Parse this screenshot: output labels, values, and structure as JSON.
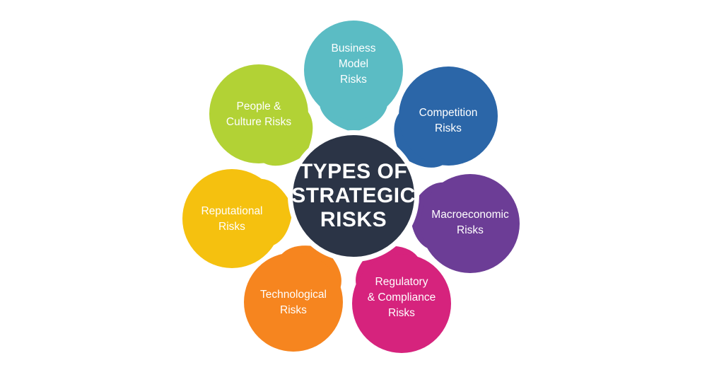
{
  "center": {
    "lines": [
      "TYPES OF",
      "STRATEGIC",
      "RISKS"
    ],
    "fill": "#2b3446"
  },
  "categories": [
    {
      "id": "business-model",
      "lines": [
        "Business",
        "Model",
        "Risks"
      ],
      "color": "#5bbcc4"
    },
    {
      "id": "competition",
      "lines": [
        "Competition",
        "Risks"
      ],
      "color": "#2b66a8"
    },
    {
      "id": "macroeconomic",
      "lines": [
        "Macroeconomic",
        "Risks"
      ],
      "color": "#6c3d96"
    },
    {
      "id": "regulatory",
      "lines": [
        "Regulatory",
        "& Compliance",
        "Risks"
      ],
      "color": "#d6237d"
    },
    {
      "id": "technological",
      "lines": [
        "Technological",
        "Risks"
      ],
      "color": "#f6851f"
    },
    {
      "id": "reputational",
      "lines": [
        "Reputational",
        "Risks"
      ],
      "color": "#f5c10f"
    },
    {
      "id": "people-culture",
      "lines": [
        "People &",
        "Culture Risks"
      ],
      "color": "#b2d235"
    }
  ]
}
